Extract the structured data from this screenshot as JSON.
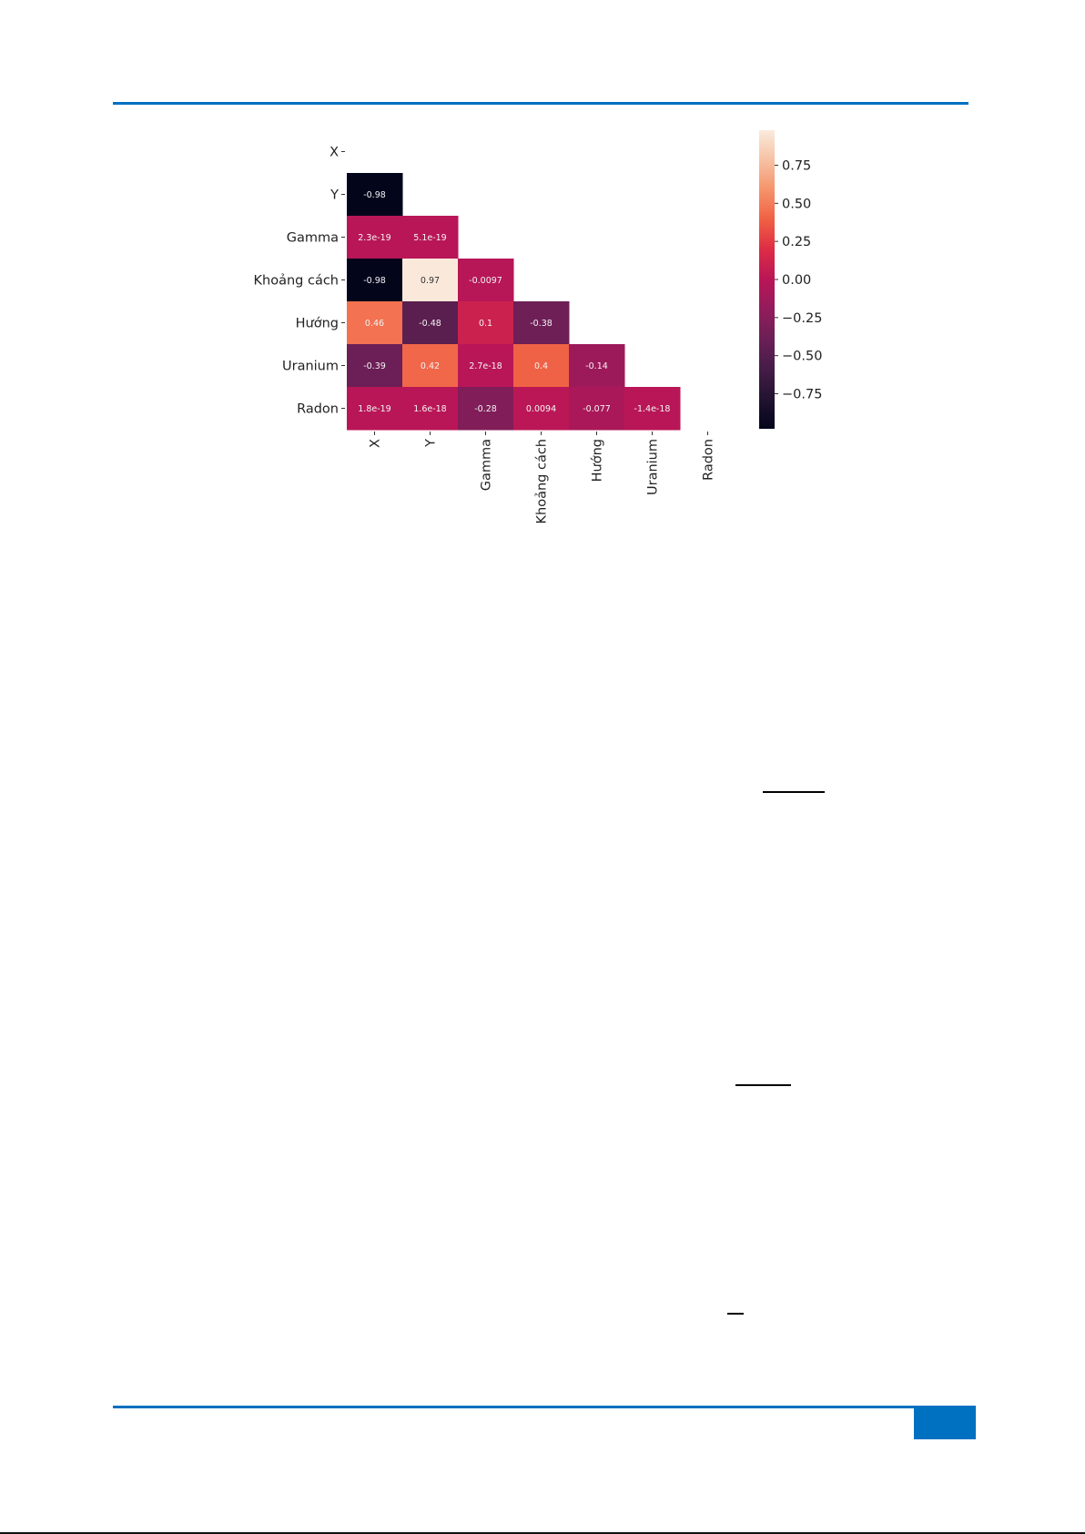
{
  "colors": {
    "rule": "#0070c0",
    "page_box": "#0070c0"
  },
  "chart_data": {
    "type": "heatmap",
    "colormap": "rocket",
    "mask": "upper triangle including diagonal",
    "row_labels": [
      "X",
      "Y",
      "Gamma",
      "Khoảng cách",
      "Hướng",
      "Uranium",
      "Radon"
    ],
    "col_labels": [
      "X",
      "Y",
      "Gamma",
      "Khoảng cách",
      "Hướng",
      "Uranium",
      "Radon"
    ],
    "cells": [
      {
        "row": 1,
        "col": 0,
        "value": -0.98,
        "label": "-0.98"
      },
      {
        "row": 2,
        "col": 0,
        "value": 2.3e-19,
        "label": "2.3e-19"
      },
      {
        "row": 2,
        "col": 1,
        "value": 5.1e-19,
        "label": "5.1e-19"
      },
      {
        "row": 3,
        "col": 0,
        "value": -0.98,
        "label": "-0.98"
      },
      {
        "row": 3,
        "col": 1,
        "value": 0.97,
        "label": "0.97"
      },
      {
        "row": 3,
        "col": 2,
        "value": -0.0097,
        "label": "-0.0097"
      },
      {
        "row": 4,
        "col": 0,
        "value": 0.46,
        "label": "0.46"
      },
      {
        "row": 4,
        "col": 1,
        "value": -0.48,
        "label": "-0.48"
      },
      {
        "row": 4,
        "col": 2,
        "value": 0.1,
        "label": "0.1"
      },
      {
        "row": 4,
        "col": 3,
        "value": -0.38,
        "label": "-0.38"
      },
      {
        "row": 5,
        "col": 0,
        "value": -0.39,
        "label": "-0.39"
      },
      {
        "row": 5,
        "col": 1,
        "value": 0.42,
        "label": "0.42"
      },
      {
        "row": 5,
        "col": 2,
        "value": 2.7e-18,
        "label": "2.7e-18"
      },
      {
        "row": 5,
        "col": 3,
        "value": 0.4,
        "label": "0.4"
      },
      {
        "row": 5,
        "col": 4,
        "value": -0.14,
        "label": "-0.14"
      },
      {
        "row": 6,
        "col": 0,
        "value": 1.8e-19,
        "label": "1.8e-19"
      },
      {
        "row": 6,
        "col": 1,
        "value": 1.6e-18,
        "label": "1.6e-18"
      },
      {
        "row": 6,
        "col": 2,
        "value": -0.28,
        "label": "-0.28"
      },
      {
        "row": 6,
        "col": 3,
        "value": 0.0094,
        "label": "0.0094"
      },
      {
        "row": 6,
        "col": 4,
        "value": -0.077,
        "label": "-0.077"
      },
      {
        "row": 6,
        "col": 5,
        "value": -1.4e-18,
        "label": "-1.4e-18"
      }
    ],
    "colorbar": {
      "range": [
        -0.98,
        0.98
      ],
      "ticks": [
        0.75,
        0.5,
        0.25,
        0.0,
        -0.25,
        -0.5,
        -0.75
      ],
      "tick_labels": [
        "0.75",
        "0.50",
        "0.25",
        "0.00",
        "−0.25",
        "−0.50",
        "−0.75"
      ]
    }
  }
}
